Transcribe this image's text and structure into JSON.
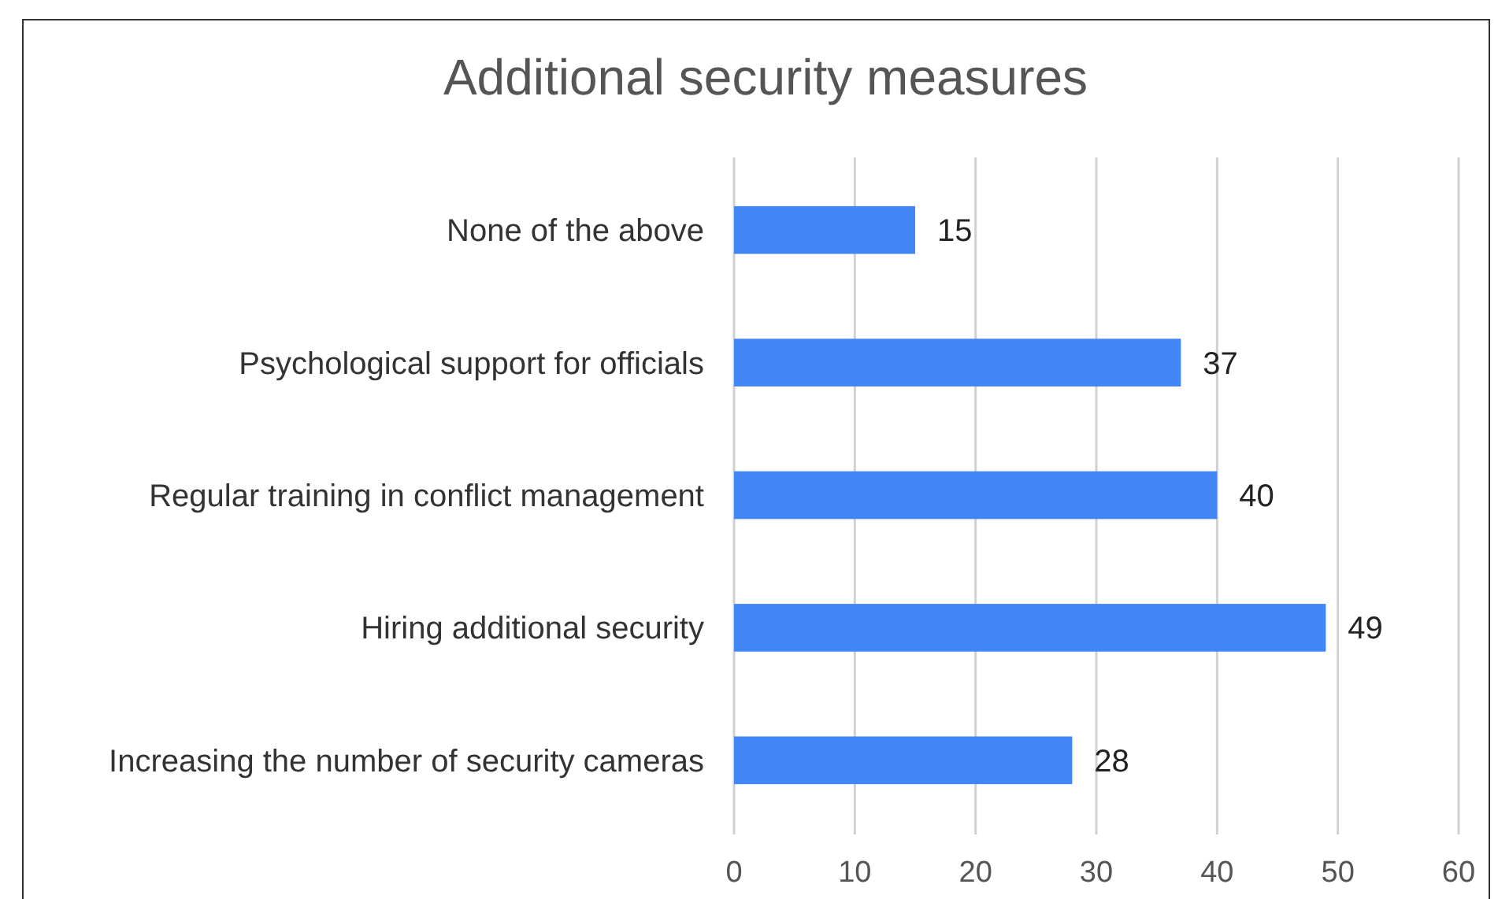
{
  "chart_data": {
    "type": "bar",
    "orientation": "horizontal",
    "title": "Additional security measures",
    "categories": [
      "None of the above",
      "Psychological support for officials",
      "Regular training in conflict management",
      "Hiring additional security",
      "Increasing the number of security cameras"
    ],
    "values": [
      15,
      37,
      40,
      49,
      28
    ],
    "color": "#4285f4",
    "xlim": [
      0,
      60
    ],
    "xticks": [
      0,
      10,
      20,
      30,
      40,
      50,
      60
    ],
    "grid": "x",
    "data_labels": true
  }
}
